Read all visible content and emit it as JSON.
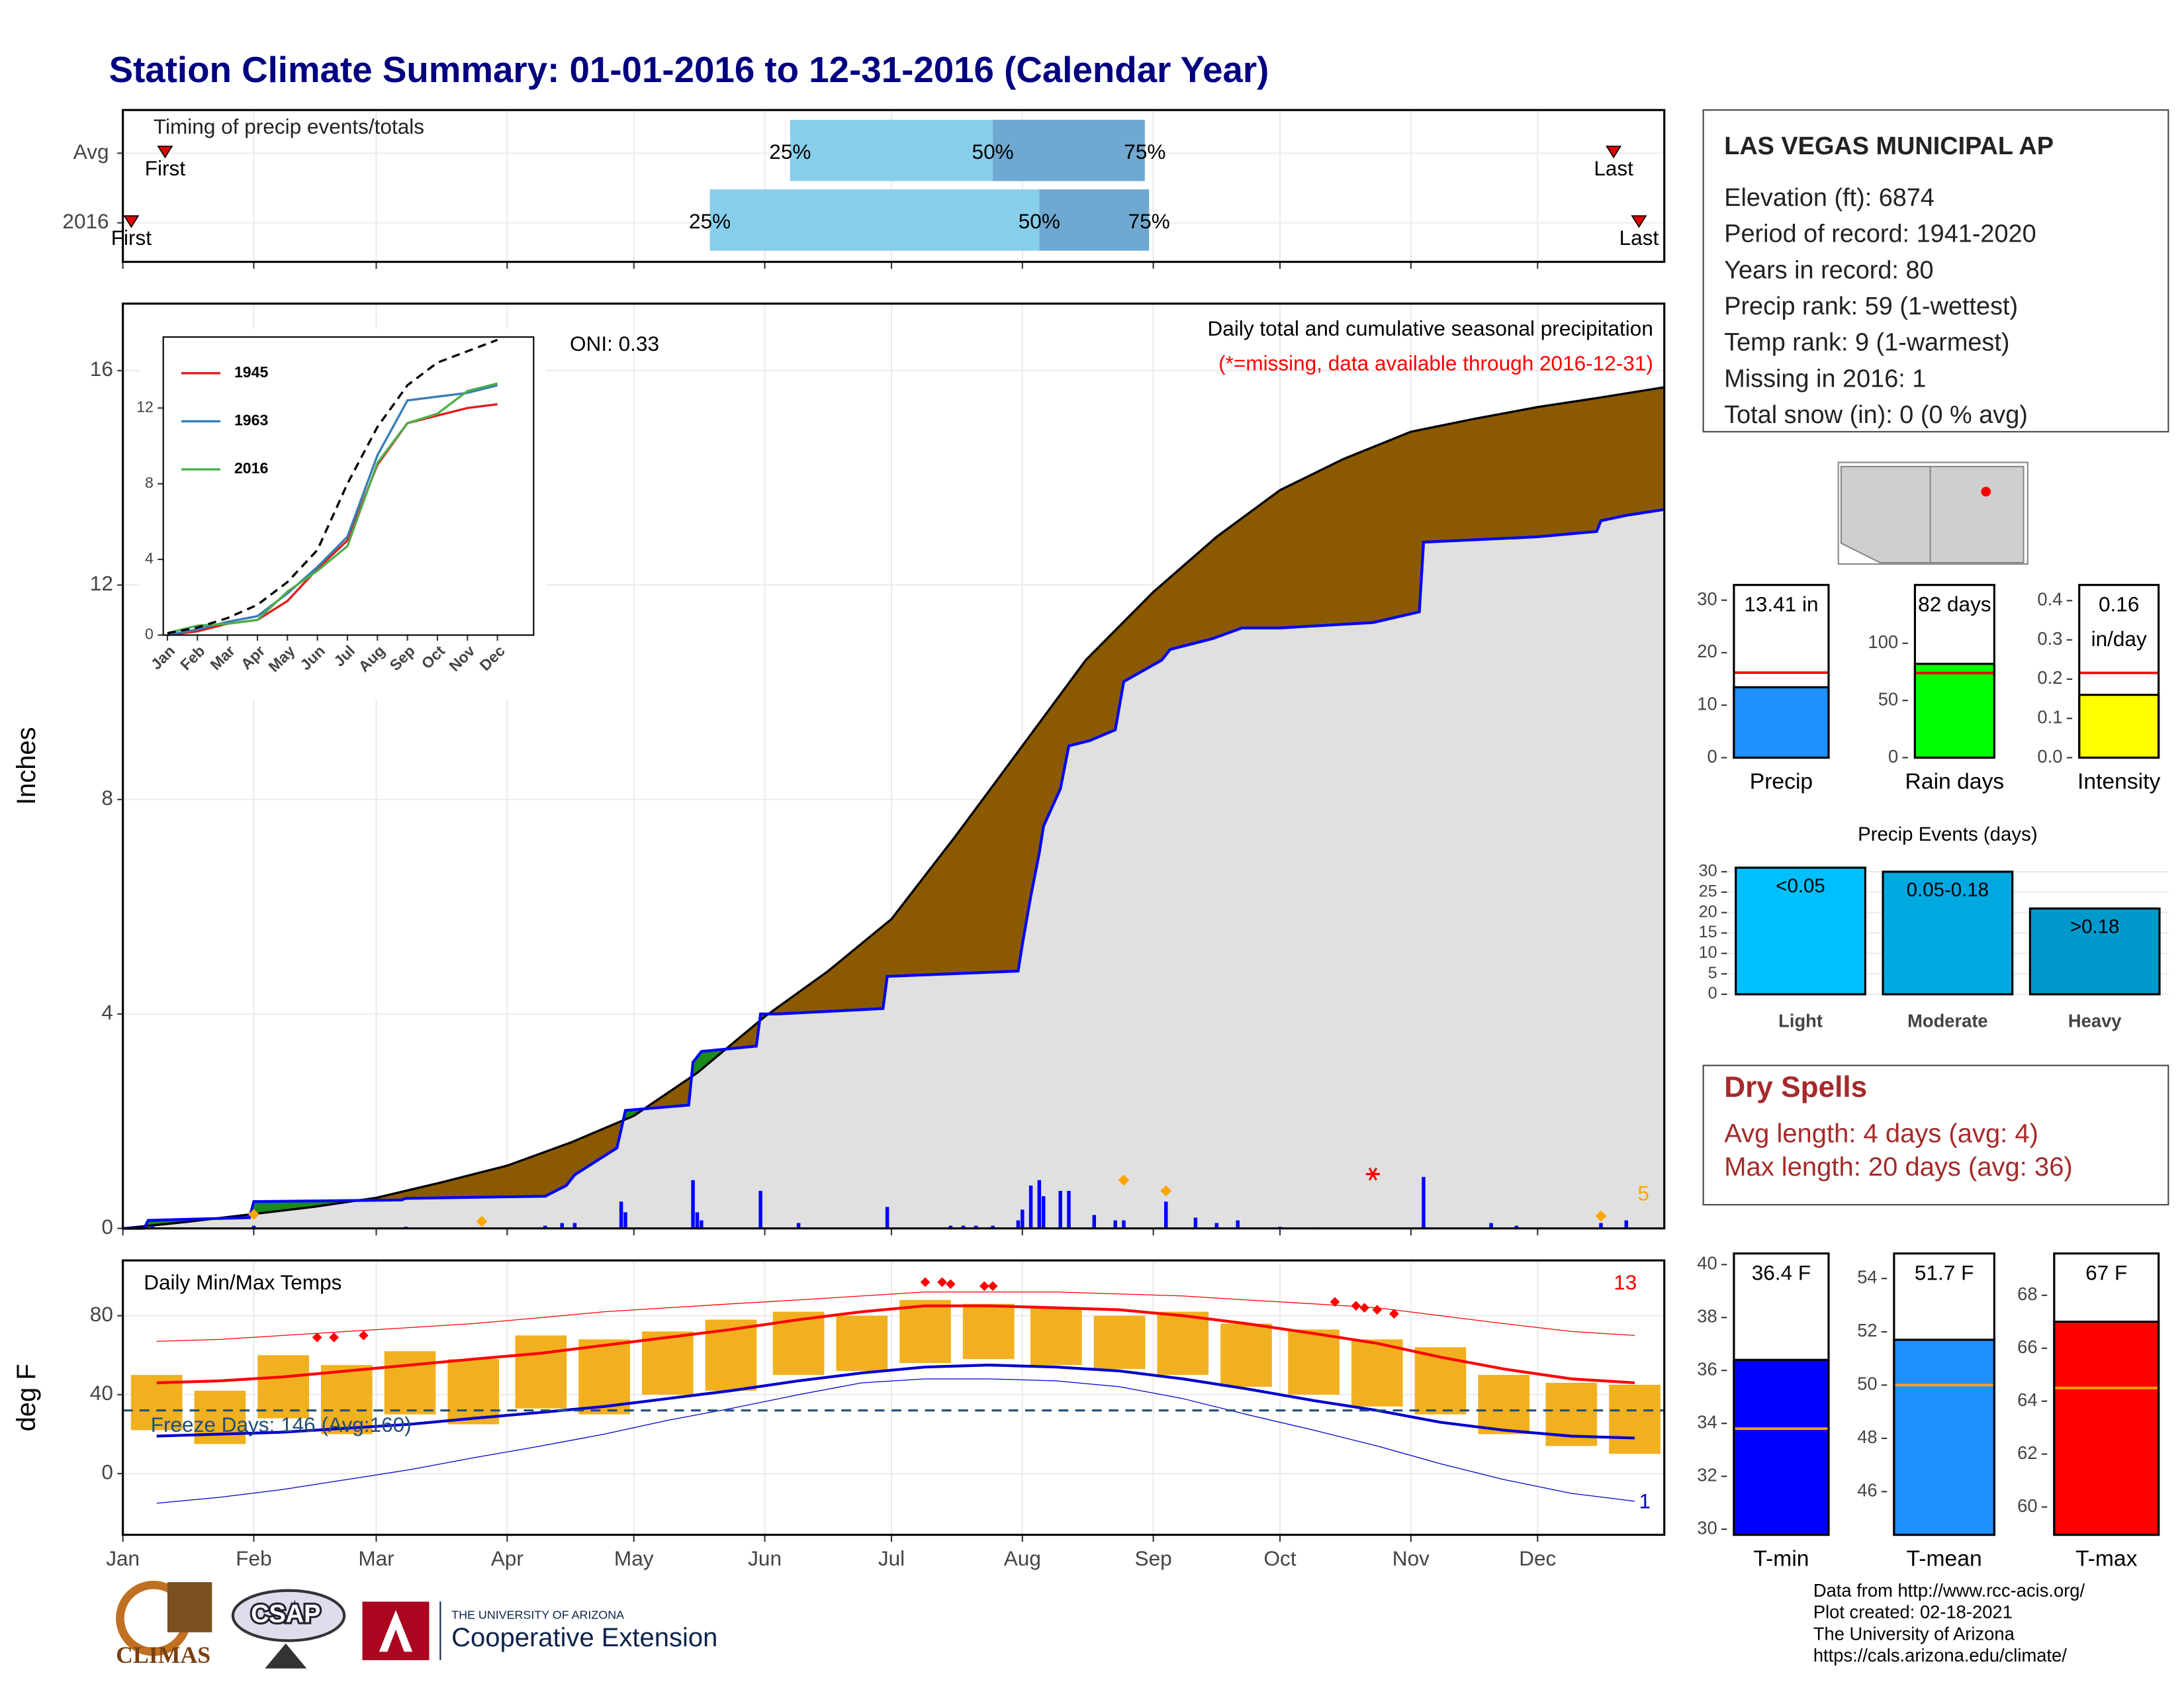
{
  "title": "Station Climate Summary: 01-01-2016 to 12-31-2016 (Calendar Year)",
  "chart_data": [
    {
      "type": "timing",
      "title": "Timing of precip events/totals",
      "xlim": [
        0,
        365
      ],
      "xticks": [
        0,
        31,
        60,
        91,
        121,
        152,
        182,
        213,
        244,
        274,
        305,
        335
      ],
      "marker_labels": {
        "first": "First",
        "p25": "25%",
        "p50": "50%",
        "p75": "75%",
        "last": "Last"
      },
      "rows": [
        {
          "name": "Avg",
          "first": 10,
          "p25": 158,
          "p50": 206,
          "p75": 242,
          "last": 353
        },
        {
          "name": "2016",
          "first": 2,
          "p25": 139,
          "p50": 217,
          "p75": 243,
          "last": 359
        }
      ],
      "bar_colors": [
        "#87ceeb",
        "#6fa8d0"
      ],
      "marker_color": "#e00000"
    },
    {
      "type": "cumulative",
      "ylabel": "Inches",
      "xlim": [
        0,
        365
      ],
      "ylim": [
        0,
        17.25
      ],
      "yticks": [
        0,
        4,
        8,
        12,
        16
      ],
      "xticks": [
        0,
        31,
        60,
        91,
        121,
        152,
        182,
        213,
        244,
        274,
        305,
        335
      ],
      "grid": true,
      "oni": "ONI: 0.33",
      "subtitle": "Daily total and cumulative seasonal precipitation",
      "missing_note": "(*=missing, data available through 2016-12-31)",
      "marker_count": "5",
      "avg": {
        "color": "#000000",
        "x": [
          0,
          15,
          30,
          45,
          60,
          75,
          91,
          106,
          121,
          136,
          152,
          167,
          182,
          197,
          213,
          228,
          244,
          259,
          274,
          289,
          305,
          320,
          335,
          350,
          365
        ],
        "values": [
          0,
          0.12,
          0.26,
          0.4,
          0.57,
          0.85,
          1.17,
          1.6,
          2.1,
          2.9,
          3.95,
          4.8,
          5.77,
          7.3,
          9.0,
          10.6,
          11.87,
          12.9,
          13.77,
          14.35,
          14.86,
          15.1,
          15.32,
          15.5,
          15.69
        ]
      },
      "obs": {
        "color": "#0000ff",
        "x": [
          0,
          5,
          6,
          30,
          31,
          66,
          67,
          100,
          105,
          107,
          117,
          119,
          134,
          135,
          137,
          150,
          151,
          155,
          180,
          181,
          212,
          213,
          215,
          217,
          218,
          222,
          224,
          229,
          235,
          237,
          246,
          248,
          258,
          265,
          274,
          296,
          307,
          308,
          335,
          349,
          350,
          356,
          365
        ],
        "values": [
          0,
          0,
          0.15,
          0.2,
          0.5,
          0.53,
          0.56,
          0.6,
          0.8,
          1.0,
          1.5,
          2.2,
          2.3,
          3.1,
          3.3,
          3.4,
          4.0,
          4.0,
          4.1,
          4.7,
          4.8,
          5.3,
          6.2,
          7.0,
          7.5,
          8.2,
          9.0,
          9.1,
          9.3,
          10.2,
          10.6,
          10.8,
          11.0,
          11.2,
          11.2,
          11.3,
          11.5,
          12.8,
          12.9,
          13.0,
          13.2,
          13.3,
          13.41
        ]
      },
      "daily": {
        "color": "#0000ff",
        "x": [
          7,
          31,
          67,
          100,
          104,
          107,
          118,
          119,
          135,
          136,
          137,
          151,
          160,
          181,
          196,
          199,
          202,
          206,
          212,
          213,
          215,
          217,
          218,
          222,
          224,
          230,
          235,
          237,
          247,
          254,
          259,
          264,
          274,
          282,
          308,
          324,
          330,
          350,
          356
        ],
        "values": [
          0.05,
          0.05,
          0.03,
          0.05,
          0.1,
          0.1,
          0.5,
          0.3,
          0.9,
          0.3,
          0.15,
          0.7,
          0.1,
          0.4,
          0.05,
          0.05,
          0.05,
          0.05,
          0.15,
          0.35,
          0.8,
          0.9,
          0.6,
          0.7,
          0.7,
          0.25,
          0.15,
          0.15,
          0.5,
          0.2,
          0.1,
          0.15,
          0.03,
          0.02,
          0.96,
          0.1,
          0.05,
          0.1,
          0.15
        ]
      },
      "markers": {
        "color": "#ffa500",
        "x": [
          31,
          85,
          237,
          247,
          350
        ],
        "values": [
          0.26,
          0.13,
          0.9,
          0.7,
          0.23
        ]
      },
      "missing": {
        "color": "#ff0000",
        "x": [
          296
        ]
      },
      "fill_colors": {
        "below": "#8b5a00",
        "above": "#1a8a1a",
        "base": "#e0e0e0"
      }
    },
    {
      "type": "line",
      "categories": [
        "Jan",
        "Feb",
        "Mar",
        "Apr",
        "May",
        "Jun",
        "Jul",
        "Aug",
        "Sep",
        "Oct",
        "Nov",
        "Dec"
      ],
      "ylim": [
        0,
        15.75
      ],
      "yticks": [
        0,
        4,
        8,
        12
      ],
      "series": [
        {
          "name": "1945",
          "color": "#e41a1c",
          "values": [
            0,
            0.2,
            0.6,
            0.8,
            1.8,
            3.5,
            5,
            9,
            11.2,
            11.6,
            12,
            12.2
          ]
        },
        {
          "name": "1963",
          "color": "#377eb8",
          "values": [
            0,
            0.3,
            0.7,
            1,
            2.2,
            3.6,
            5.2,
            9.5,
            12.4,
            12.6,
            12.8,
            13.2
          ]
        },
        {
          "name": "2016",
          "color": "#4daf4a",
          "values": [
            0.1,
            0.5,
            0.6,
            0.8,
            2.3,
            3.4,
            4.7,
            9.1,
            11.2,
            11.7,
            12.9,
            13.3
          ]
        }
      ],
      "average": {
        "color": "#000000",
        "values": [
          0.1,
          0.4,
          0.9,
          1.6,
          2.8,
          4.5,
          8,
          11,
          13.2,
          14.4,
          15,
          15.6
        ]
      }
    },
    {
      "type": "temperature",
      "title": "Daily Min/Max Temps",
      "ylabel": "deg F",
      "xlim": [
        0,
        365
      ],
      "ylim": [
        -31,
        108
      ],
      "yticks": [
        0,
        40,
        80
      ],
      "grid": true,
      "xticks": [
        {
          "value": 0,
          "label": "Jan"
        },
        {
          "value": 31,
          "label": "Feb"
        },
        {
          "value": 60,
          "label": "Mar"
        },
        {
          "value": 91,
          "label": "Apr"
        },
        {
          "value": 121,
          "label": "May"
        },
        {
          "value": 152,
          "label": "Jun"
        },
        {
          "value": 182,
          "label": "Jul"
        },
        {
          "value": 213,
          "label": "Aug"
        },
        {
          "value": 244,
          "label": "Sep"
        },
        {
          "value": 274,
          "label": "Oct"
        },
        {
          "value": 305,
          "label": "Nov"
        },
        {
          "value": 335,
          "label": "Dec"
        }
      ],
      "x": [
        8,
        23,
        38,
        53,
        68,
        83,
        99,
        114,
        129,
        144,
        160,
        175,
        190,
        205,
        221,
        236,
        251,
        266,
        282,
        297,
        312,
        327,
        343,
        358
      ],
      "high": [
        50,
        42,
        60,
        55,
        62,
        58,
        70,
        68,
        72,
        78,
        82,
        80,
        88,
        86,
        84,
        80,
        82,
        76,
        73,
        68,
        64,
        50,
        46,
        45
      ],
      "low": [
        22,
        15,
        28,
        20,
        30,
        25,
        33,
        30,
        40,
        42,
        50,
        52,
        56,
        58,
        55,
        53,
        50,
        44,
        40,
        34,
        30,
        20,
        14,
        10
      ],
      "avg_high": [
        46,
        47,
        49,
        52,
        55,
        58,
        61,
        65,
        69,
        73,
        78,
        82,
        85,
        85,
        84,
        83,
        80,
        76,
        71,
        66,
        59,
        53,
        48,
        46
      ],
      "avg_low": [
        19,
        20,
        21,
        23,
        25,
        28,
        31,
        34,
        38,
        42,
        47,
        51,
        54,
        55,
        54,
        52,
        48,
        43,
        37,
        32,
        26,
        22,
        19,
        18
      ],
      "record_high": [
        67,
        68,
        70,
        72,
        74,
        76,
        79,
        82,
        84,
        86,
        88,
        90,
        92,
        92,
        92,
        91,
        90,
        88,
        86,
        84,
        80,
        76,
        72,
        70
      ],
      "record_low": [
        -15,
        -12,
        -8,
        -3,
        2,
        8,
        14,
        20,
        27,
        33,
        40,
        46,
        48,
        48,
        47,
        44,
        38,
        30,
        22,
        14,
        5,
        -3,
        -10,
        -14
      ],
      "records": {
        "x": [
          46,
          50,
          57,
          190,
          194,
          196,
          204,
          206,
          287,
          292,
          294,
          297,
          301
        ],
        "values": [
          69,
          69,
          70,
          97,
          97,
          96,
          95,
          95,
          87,
          85,
          84,
          83,
          81
        ]
      },
      "freeze_line": 32,
      "freeze_label": "Freeze Days: 146 (Avg:160)",
      "record_high_count": "13",
      "record_low_count": "1",
      "colors": {
        "bars": "#f0b020",
        "high": "#ff0000",
        "low": "#0000cc",
        "freeze": "#1f4e79"
      }
    },
    {
      "type": "single_bar",
      "xlabel": "Precip",
      "value": 13.41,
      "value_label": [
        "13.41 in"
      ],
      "average": 16.2,
      "ylim": [
        0,
        32.9
      ],
      "yticks": [
        0,
        10,
        20,
        30
      ],
      "color": "#1e90ff",
      "average_color": "#ff0000"
    },
    {
      "type": "single_bar",
      "xlabel": "Rain days",
      "value": 82,
      "value_label": [
        "82 days"
      ],
      "average": 74,
      "ylim": [
        0,
        151
      ],
      "yticks": [
        0,
        50,
        100
      ],
      "color": "#00ff00",
      "average_color": "#ff0000"
    },
    {
      "type": "single_bar",
      "xlabel": "Intensity",
      "value": 0.16,
      "value_label": [
        "0.16",
        "in/day"
      ],
      "average": 0.216,
      "ylim": [
        0,
        0.44
      ],
      "yticks": [
        {
          "value": 0,
          "label": "0.0"
        },
        0.1,
        0.2,
        0.3,
        0.4
      ],
      "color": "#ffff00",
      "average_color": "#ff0000"
    },
    {
      "type": "bar",
      "title": "Precip Events (days)",
      "categories": [
        "Light",
        "Moderate",
        "Heavy"
      ],
      "values": [
        31,
        30,
        21
      ],
      "range_labels": [
        "<0.05",
        "0.05-0.18",
        ">0.18"
      ],
      "colors": [
        "#00bfff",
        "#00a8e0",
        "#0099cc"
      ],
      "ylim": [
        -1.4,
        32.7
      ],
      "yticks": [
        0,
        5,
        10,
        15,
        20,
        25,
        30
      ],
      "grid": true
    },
    {
      "type": "single_bar",
      "xlabel": "T-min",
      "value": 36.4,
      "value_label": [
        "36.4 F"
      ],
      "average": 33.8,
      "ylim": [
        29.79,
        40.42
      ],
      "yticks": [
        30,
        32,
        34,
        36,
        38,
        40
      ],
      "color": "#0000ff",
      "average_color": "#ffa500"
    },
    {
      "type": "single_bar",
      "xlabel": "T-mean",
      "value": 51.7,
      "value_label": [
        "51.7 F"
      ],
      "average": 50.0,
      "ylim": [
        44.38,
        54.94
      ],
      "yticks": [
        46,
        48,
        50,
        52,
        54
      ],
      "color": "#1e90ff",
      "average_color": "#ffa500"
    },
    {
      "type": "single_bar",
      "xlabel": "T-max",
      "value": 67,
      "value_label": [
        "67 F"
      ],
      "average": 64.5,
      "ylim": [
        58.95,
        69.58
      ],
      "yticks": [
        60,
        62,
        64,
        66,
        68
      ],
      "color": "#ff0000",
      "average_color": "#ffa500"
    }
  ],
  "station": {
    "name": "LAS VEGAS MUNICIPAL AP",
    "lines": [
      "Elevation (ft): 6874",
      "Period of record: 1941-2020",
      "Years in record: 80",
      "Precip rank: 59 (1-wettest)",
      "Temp rank: 9 (1-warmest)",
      "Missing in 2016: 1",
      "Total snow (in): 0 (0 % avg)"
    ]
  },
  "dry_spells": {
    "title": "Dry Spells",
    "lines": [
      "Avg length: 4 days (avg: 4)",
      "Max length: 20 days (avg: 36)"
    ]
  },
  "footer": {
    "logos": [
      "CLIMAS",
      "CSAP",
      "THE UNIVERSITY OF ARIZONA",
      "Cooperative Extension"
    ],
    "credits": [
      "Data from http://www.rcc-acis.org/",
      "Plot created: 02-18-2021",
      "The University of Arizona",
      "https://cals.arizona.edu/climate/"
    ]
  }
}
